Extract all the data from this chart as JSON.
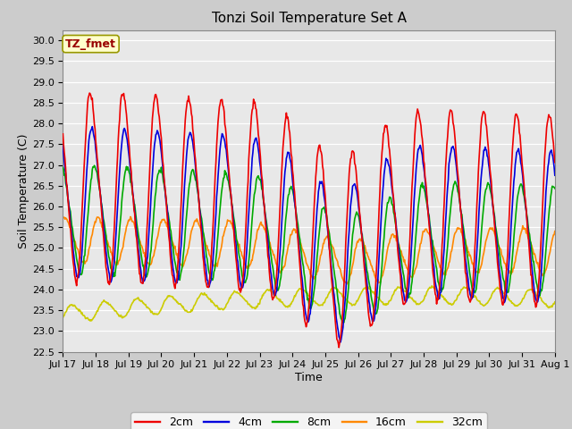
{
  "title": "Tonzi Soil Temperature Set A",
  "xlabel": "Time",
  "ylabel": "Soil Temperature (C)",
  "ylim": [
    22.5,
    30.25
  ],
  "yticks": [
    22.5,
    23.0,
    23.5,
    24.0,
    24.5,
    25.0,
    25.5,
    26.0,
    26.5,
    27.0,
    27.5,
    28.0,
    28.5,
    29.0,
    29.5,
    30.0
  ],
  "annotation_text": "TZ_fmet",
  "annotation_bg": "#ffffcc",
  "annotation_border": "#999900",
  "annotation_text_color": "#990000",
  "line_colors": {
    "2cm": "#ee0000",
    "4cm": "#0000dd",
    "8cm": "#00aa00",
    "16cm": "#ff8800",
    "32cm": "#cccc00"
  },
  "line_width": 1.2,
  "fig_bg": "#cccccc",
  "plot_bg": "#e8e8e8",
  "title_fontsize": 11,
  "axis_label_fontsize": 9,
  "tick_fontsize": 8,
  "tick_labels": [
    "Jul 17",
    "Jul 18",
    "Jul 19",
    "Jul 20",
    "Jul 21",
    "Jul 22",
    "Jul 23",
    "Jul 24",
    "Jul 25",
    "Jul 26",
    "Jul 27",
    "Jul 28",
    "Jul 29",
    "Jul 30",
    "Jul 31",
    "Aug 1"
  ]
}
